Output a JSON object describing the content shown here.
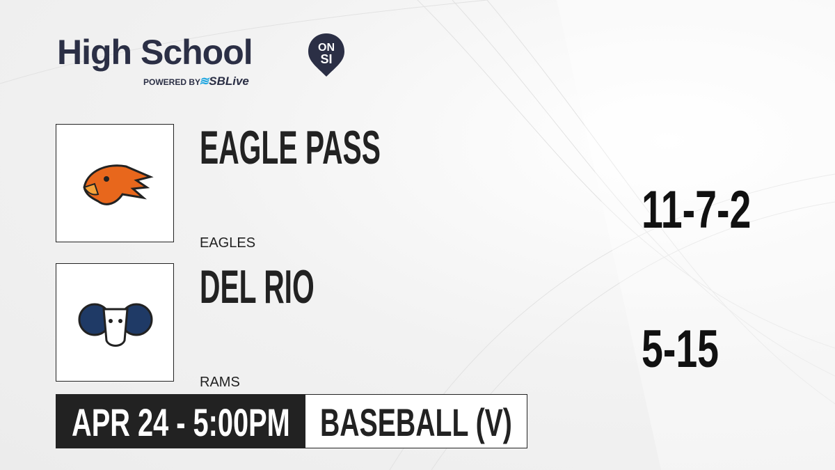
{
  "brand": {
    "title": "High School",
    "badge_top": "ON",
    "badge_bottom": "SI",
    "powered_by": "POWERED BY",
    "partner": "SBLive",
    "partner_accent": "#1fa6e0",
    "color": "#2b2f45"
  },
  "home": {
    "name": "EAGLE PASS",
    "mascot": "EAGLES",
    "record": "11-7-2",
    "logo_icon": "eagle-logo",
    "color": "#e8671c"
  },
  "away": {
    "name": "DEL RIO",
    "mascot": "RAMS",
    "record": "5-15",
    "logo_icon": "ram-logo",
    "color": "#1f3a66"
  },
  "game": {
    "datetime": "APR 24 - 5:00PM",
    "sport": "BASEBALL (V)"
  }
}
